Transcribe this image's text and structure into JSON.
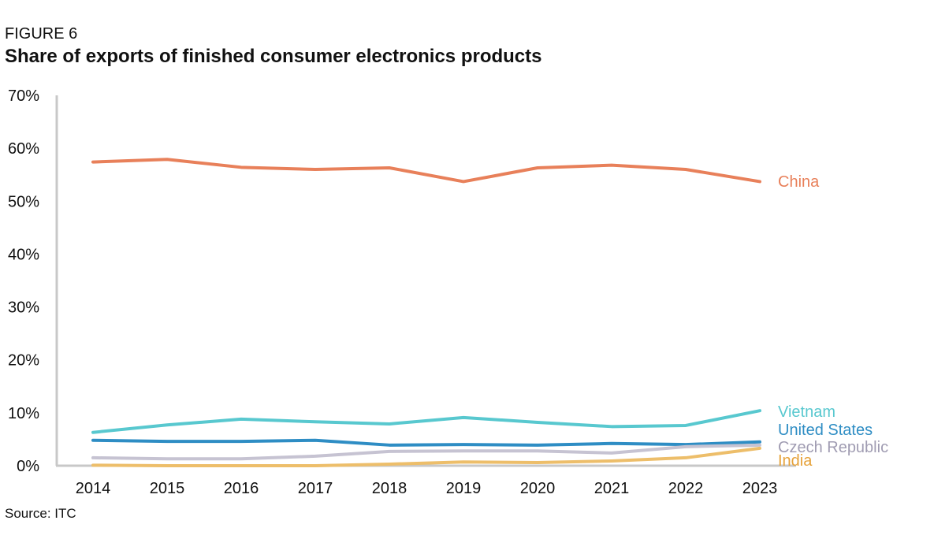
{
  "figure_label": "FIGURE 6",
  "title": "Share of exports of finished consumer electronics products",
  "source": "Source: ITC",
  "chart_data": {
    "type": "line",
    "title": "Share of exports of finished consumer electronics products",
    "xlabel": "",
    "ylabel": "",
    "x": [
      "2014",
      "2015",
      "2016",
      "2017",
      "2018",
      "2019",
      "2020",
      "2021",
      "2022",
      "2023"
    ],
    "ylim": [
      0,
      70
    ],
    "yticks": [
      "0%",
      "10%",
      "20%",
      "30%",
      "40%",
      "50%",
      "60%",
      "70%"
    ],
    "grid": false,
    "legend": "direct labels at line ends (right)",
    "series": [
      {
        "name": "China",
        "color": "#E8805A",
        "values": [
          57.4,
          57.9,
          56.4,
          56.0,
          56.3,
          53.7,
          56.3,
          56.8,
          56.0,
          53.7
        ]
      },
      {
        "name": "Vietnam",
        "color": "#58C8CF",
        "values": [
          6.3,
          7.7,
          8.8,
          8.3,
          7.9,
          9.1,
          8.2,
          7.4,
          7.6,
          10.4
        ]
      },
      {
        "name": "United States",
        "color": "#2E8DC4",
        "values": [
          4.8,
          4.6,
          4.6,
          4.8,
          3.9,
          4.0,
          3.9,
          4.2,
          4.0,
          4.5
        ]
      },
      {
        "name": "Czech Republic",
        "color": "#C6C3D2",
        "label_color": "#A09CB2",
        "values": [
          1.5,
          1.3,
          1.3,
          1.8,
          2.7,
          2.8,
          2.8,
          2.4,
          3.6,
          3.9
        ]
      },
      {
        "name": "India",
        "color": "#EDBE6A",
        "label_color": "#E6A23A",
        "values": [
          0.1,
          0.0,
          0.0,
          0.0,
          0.3,
          0.7,
          0.6,
          0.9,
          1.5,
          3.3
        ]
      }
    ]
  }
}
